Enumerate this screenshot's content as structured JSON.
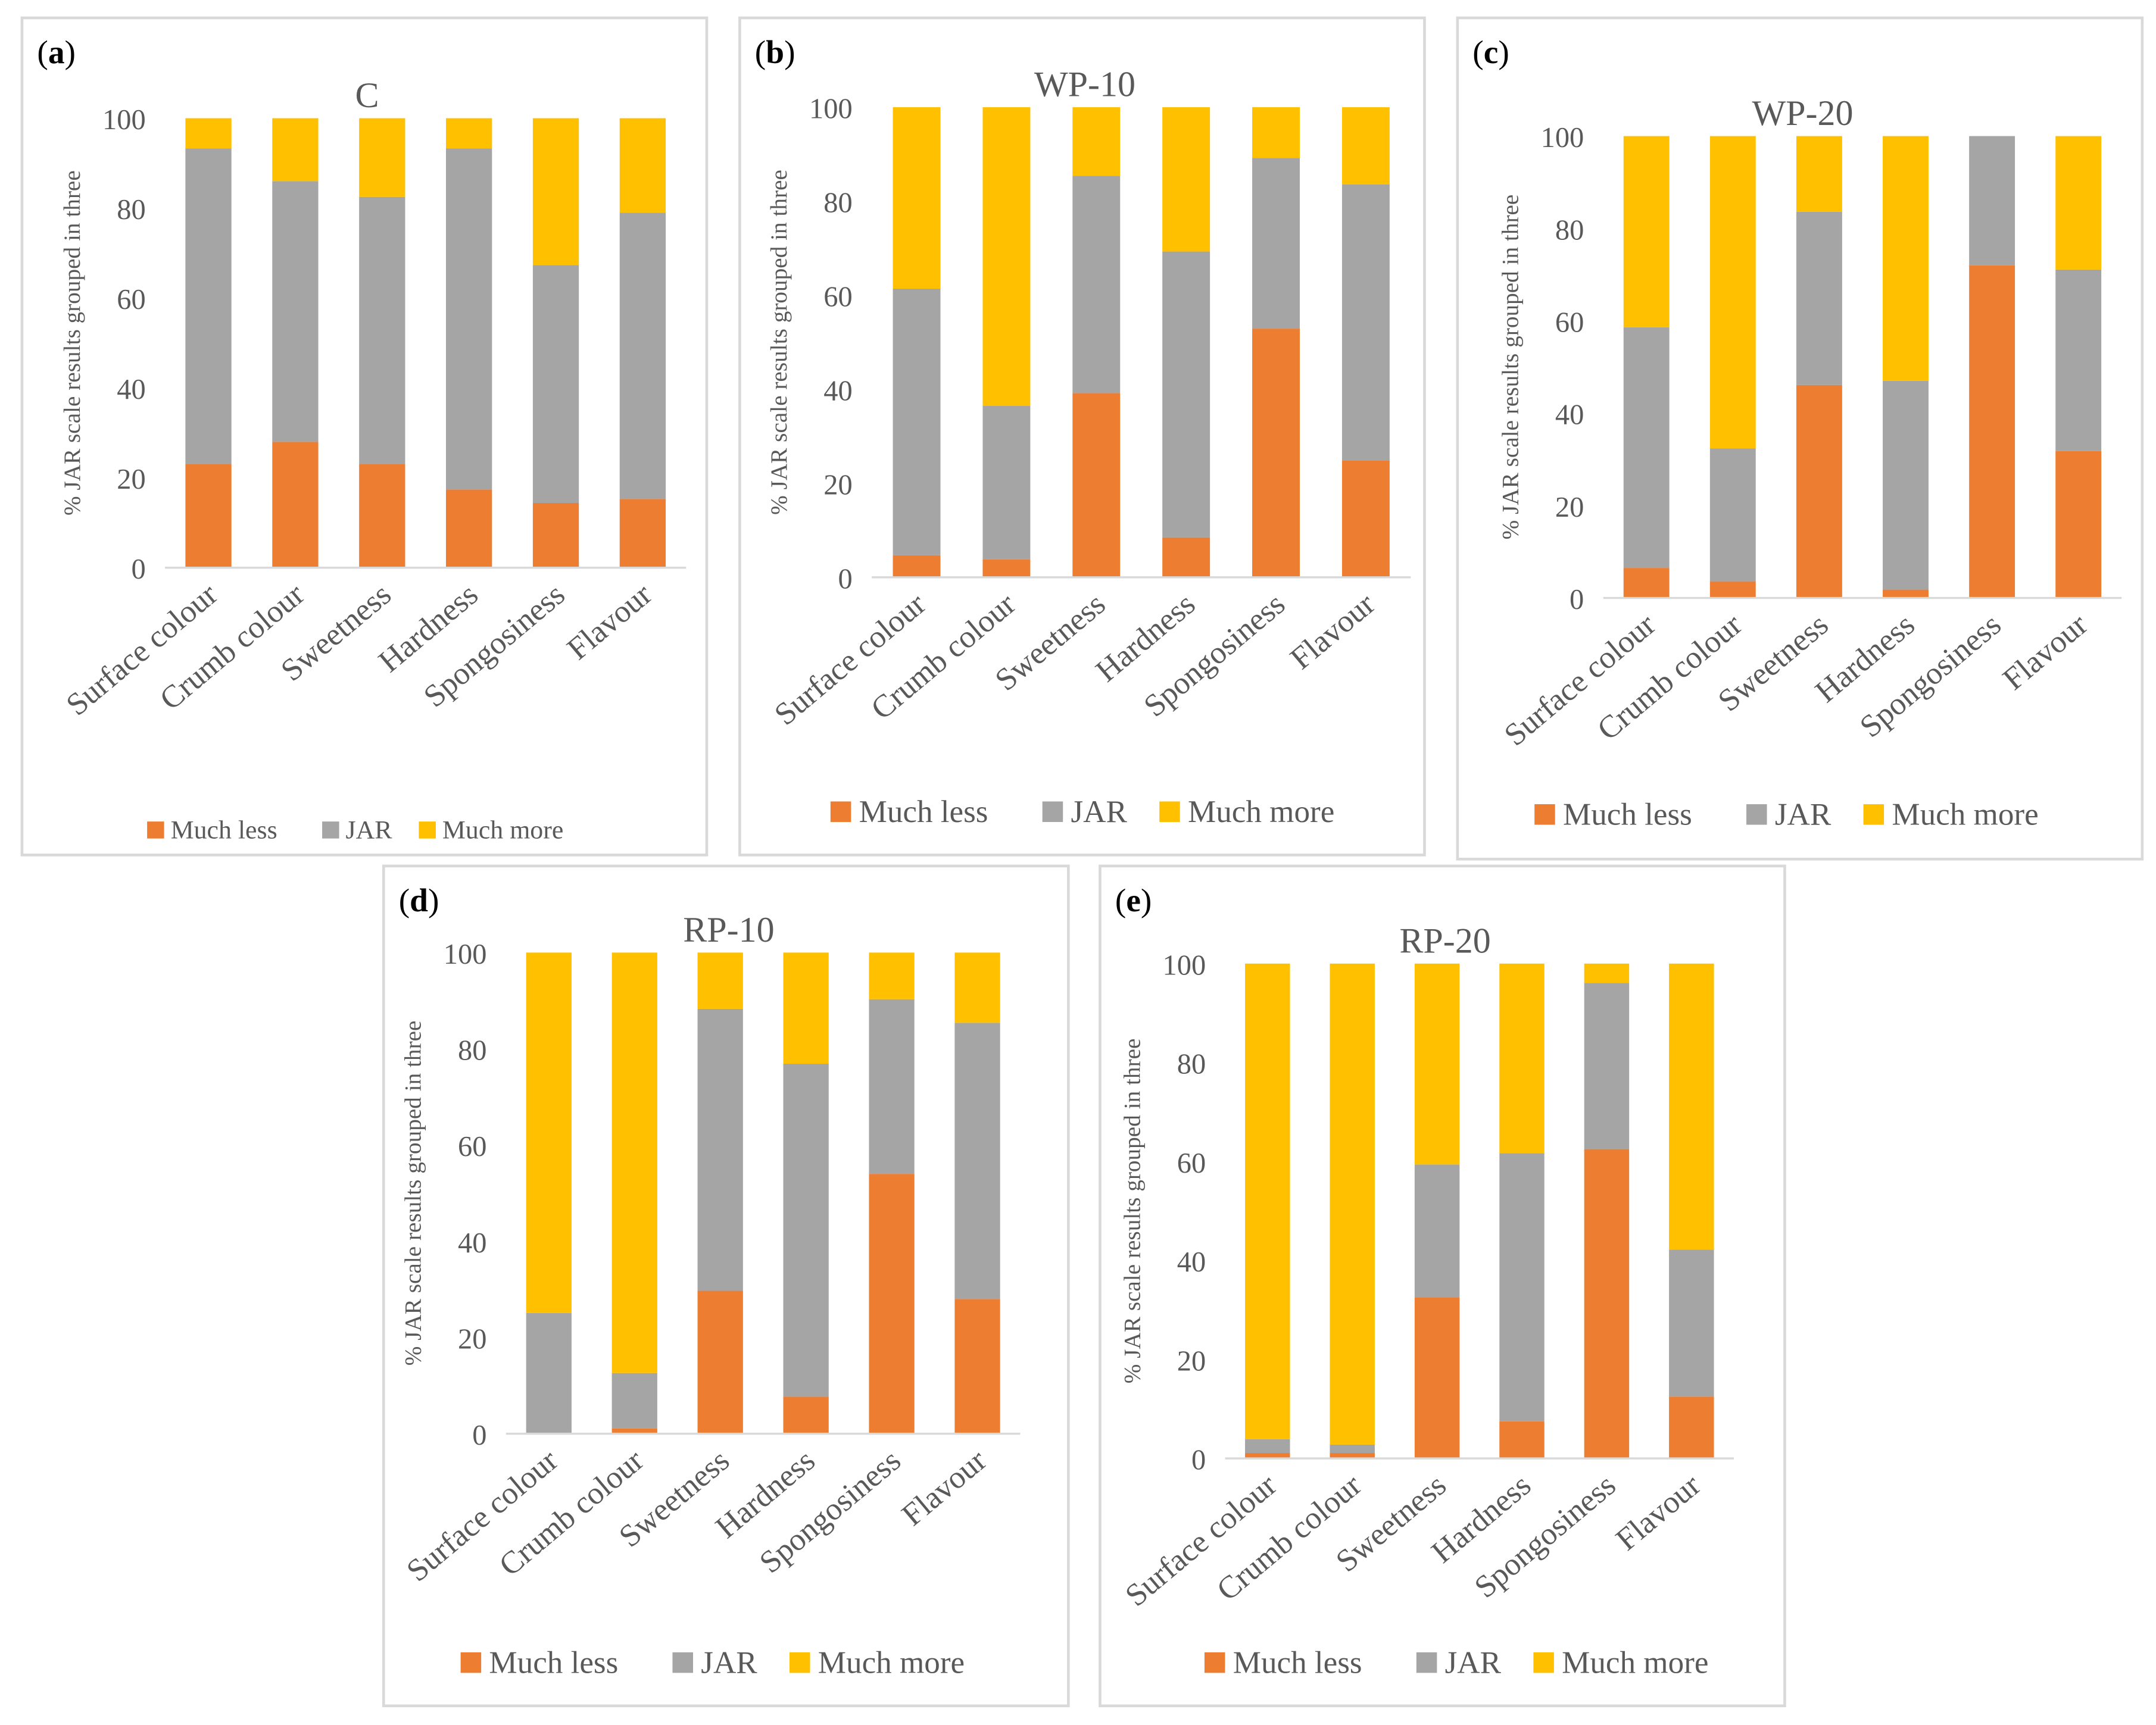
{
  "chart_data": [
    {
      "type": "bar",
      "stacked": true,
      "panel": "a",
      "title": "C",
      "ylabel": "% JAR scale results grouped in three",
      "ylim": [
        0,
        100
      ],
      "yticks": [
        0,
        20,
        40,
        60,
        80,
        100
      ],
      "categories": [
        "Surface colour",
        "Crumb colour",
        "Sweetness",
        "Hardness",
        "Spongosiness",
        "Flavour"
      ],
      "series": [
        {
          "name": "Much less",
          "values": [
            23.1,
            28.0,
            23.1,
            17.4,
            14.4,
            15.3
          ]
        },
        {
          "name": "JAR",
          "values": [
            70.2,
            58.0,
            59.4,
            75.9,
            52.9,
            63.7
          ]
        },
        {
          "name": "Much more",
          "values": [
            6.7,
            14.0,
            17.5,
            6.7,
            32.7,
            21.0
          ]
        }
      ]
    },
    {
      "type": "bar",
      "stacked": true,
      "panel": "b",
      "title": "WP-10",
      "ylabel": "% JAR scale results grouped in three",
      "ylim": [
        0,
        100
      ],
      "yticks": [
        0,
        20,
        40,
        60,
        80,
        100
      ],
      "categories": [
        "Surface colour",
        "Crumb colour",
        "Sweetness",
        "Hardness",
        "Spongosiness",
        "Flavour"
      ],
      "series": [
        {
          "name": "Much less",
          "values": [
            4.7,
            3.8,
            39.2,
            8.5,
            52.9,
            24.9
          ]
        },
        {
          "name": "JAR",
          "values": [
            56.7,
            32.7,
            46.2,
            60.8,
            36.3,
            58.7
          ]
        },
        {
          "name": "Much more",
          "values": [
            38.6,
            63.5,
            14.6,
            30.7,
            10.8,
            16.4
          ]
        }
      ]
    },
    {
      "type": "bar",
      "stacked": true,
      "panel": "c",
      "title": "WP-20",
      "ylabel": "% JAR scale results grouped in three",
      "ylim": [
        0,
        100
      ],
      "yticks": [
        0,
        20,
        40,
        60,
        80,
        100
      ],
      "categories": [
        "Surface colour",
        "Crumb colour",
        "Sweetness",
        "Hardness",
        "Spongosiness",
        "Flavour"
      ],
      "series": [
        {
          "name": "Much less",
          "values": [
            6.5,
            3.6,
            46.1,
            1.8,
            72.0,
            31.8
          ]
        },
        {
          "name": "JAR",
          "values": [
            52.1,
            28.8,
            37.5,
            45.2,
            28.0,
            39.3
          ]
        },
        {
          "name": "Much more",
          "values": [
            41.4,
            67.6,
            16.4,
            53.0,
            0.0,
            28.9
          ]
        }
      ]
    },
    {
      "type": "bar",
      "stacked": true,
      "panel": "d",
      "title": "RP-10",
      "ylabel": "% JAR scale results grouped in three",
      "ylim": [
        0,
        100
      ],
      "yticks": [
        0,
        20,
        40,
        60,
        80,
        100
      ],
      "categories": [
        "Surface colour",
        "Crumb colour",
        "Sweetness",
        "Hardness",
        "Spongosiness",
        "Flavour"
      ],
      "series": [
        {
          "name": "Much less",
          "values": [
            0.0,
            1.1,
            29.7,
            7.7,
            54.0,
            28.0
          ]
        },
        {
          "name": "JAR",
          "values": [
            25.1,
            11.5,
            58.6,
            69.2,
            36.3,
            57.4
          ]
        },
        {
          "name": "Much more",
          "values": [
            74.9,
            87.4,
            11.7,
            23.1,
            9.7,
            14.6
          ]
        }
      ]
    },
    {
      "type": "bar",
      "stacked": true,
      "panel": "e",
      "title": "RP-20",
      "ylabel": "% JAR scale results grouped in three",
      "ylim": [
        0,
        100
      ],
      "yticks": [
        0,
        20,
        40,
        60,
        80,
        100
      ],
      "categories": [
        "Surface colour",
        "Crumb colour",
        "Sweetness",
        "Hardness",
        "Spongosiness",
        "Flavour"
      ],
      "series": [
        {
          "name": "Much less",
          "values": [
            1.1,
            1.1,
            32.5,
            7.5,
            62.5,
            12.5
          ]
        },
        {
          "name": "JAR",
          "values": [
            2.8,
            1.7,
            26.9,
            54.2,
            33.6,
            29.7
          ]
        },
        {
          "name": "Much more",
          "values": [
            96.1,
            97.2,
            40.6,
            38.3,
            3.9,
            57.8
          ]
        }
      ]
    }
  ],
  "panel_labels": [
    "a",
    "b",
    "c",
    "d",
    "e"
  ],
  "colors": {
    "Much less": "#ed7d31",
    "JAR": "#a5a5a5",
    "Much more": "#ffc000",
    "text": "#595959",
    "axis": "#d9d9d9"
  }
}
